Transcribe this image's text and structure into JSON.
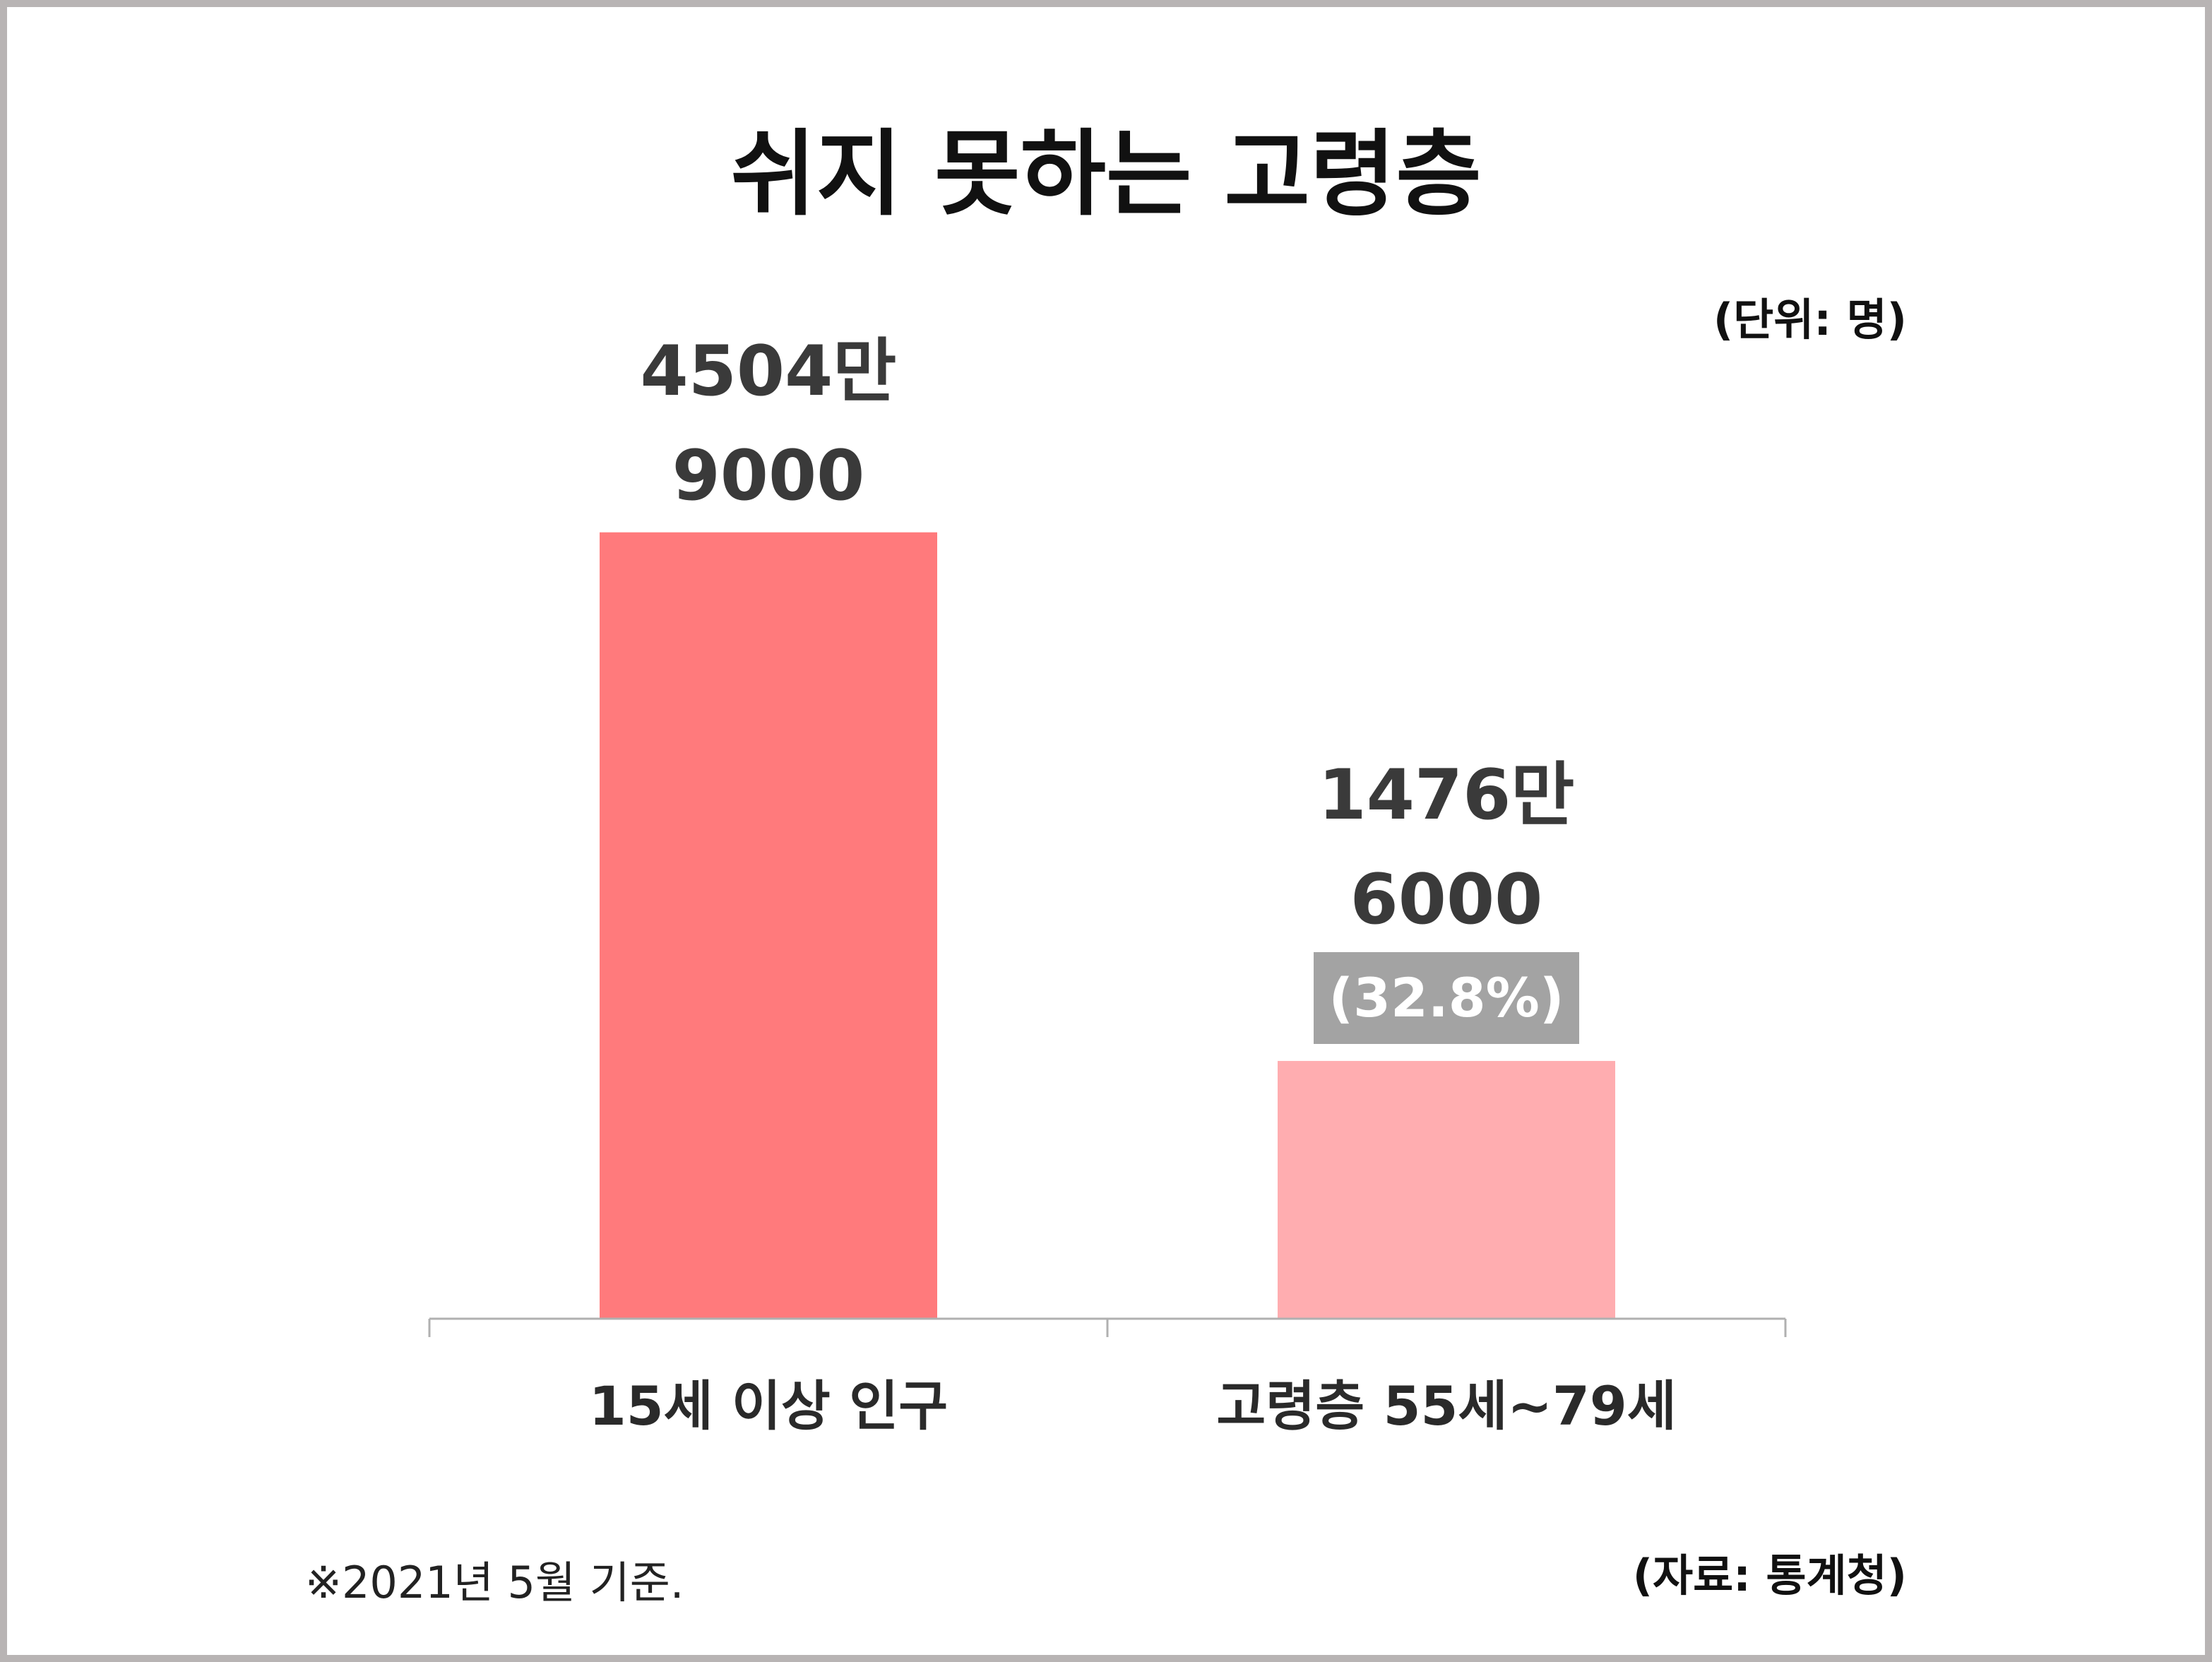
{
  "chart_data": {
    "type": "bar",
    "title": "쉬지 못하는 고령층",
    "unit_note": "(단위: 명)",
    "categories": [
      "15세 이상 인구",
      "고령층 55세~79세"
    ],
    "values": [
      45049000,
      14766000
    ],
    "value_labels": [
      [
        "4504만",
        "9000"
      ],
      [
        "1476만",
        "6000"
      ]
    ],
    "annotations": [
      {
        "category": "고령층 55세~79세",
        "text": "(32.8%)"
      }
    ],
    "colors": [
      "#ff7a7c",
      "#ffadb0"
    ],
    "ylim": [
      0,
      49000000
    ],
    "grid": false,
    "legend": "none",
    "footnote": "※2021년 5월 기준.",
    "source": "(자료: 통계청)"
  }
}
